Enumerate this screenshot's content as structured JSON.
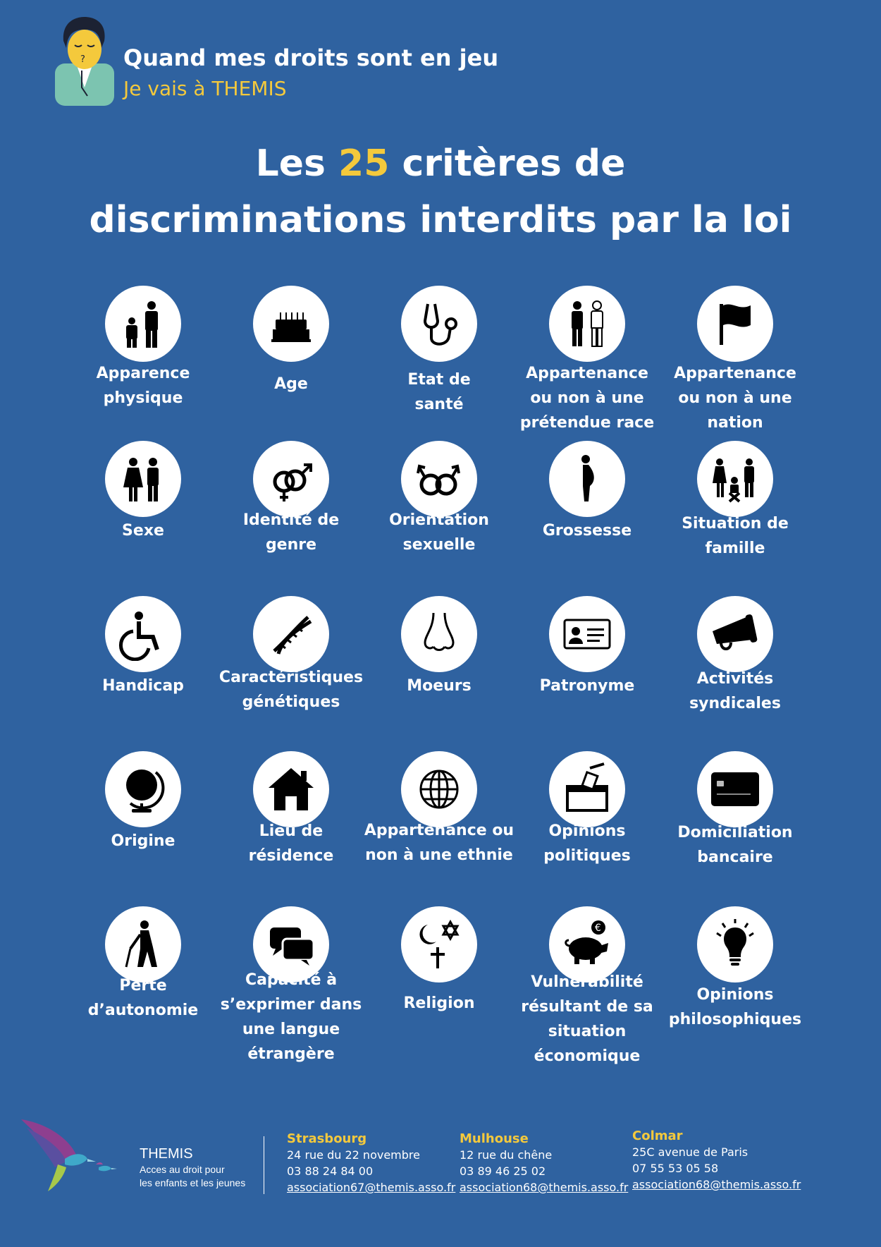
{
  "header": {
    "title": "Quand mes droits sont en jeu",
    "subtitle": "Je vais à THEMIS"
  },
  "main_title": {
    "prefix": "Les ",
    "number": "25",
    "suffix": " critères de",
    "line2": "discriminations interdits par la loi"
  },
  "colors": {
    "background": "#2f62a0",
    "accent": "#f4c93c",
    "circle": "#ffffff",
    "icon": "#000000"
  },
  "criteria": [
    {
      "label": "Apparence\nphysique",
      "icon": "people-sizes-icon"
    },
    {
      "label": "Age",
      "icon": "birthday-cake-icon"
    },
    {
      "label": "Etat de\nsanté",
      "icon": "stethoscope-icon"
    },
    {
      "label": "Appartenance\nou non à une\nprétendue race",
      "icon": "two-persons-icon"
    },
    {
      "label": "Appartenance\nou non à une\nnation",
      "icon": "flag-icon"
    },
    {
      "label": "Sexe",
      "icon": "woman-man-icon"
    },
    {
      "label": "Identité de\ngenre",
      "icon": "gender-symbols-icon"
    },
    {
      "label": "Orientation\nsexuelle",
      "icon": "male-couple-symbols-icon"
    },
    {
      "label": "Grossesse",
      "icon": "pregnant-woman-icon"
    },
    {
      "label": "Situation de\nfamille",
      "icon": "family-icon"
    },
    {
      "label": "Handicap",
      "icon": "wheelchair-icon"
    },
    {
      "label": "Caractéristiques\ngénétiques",
      "icon": "dna-icon"
    },
    {
      "label": "Moeurs",
      "icon": "nose-icon"
    },
    {
      "label": "Patronyme",
      "icon": "id-card-icon"
    },
    {
      "label": "Activités\nsyndicales",
      "icon": "megaphone-icon"
    },
    {
      "label": "Origine",
      "icon": "globe-icon"
    },
    {
      "label": "Lieu de\nrésidence",
      "icon": "house-icon"
    },
    {
      "label": "Appartenance ou\nnon à une ethnie",
      "icon": "world-grid-icon"
    },
    {
      "label": "Opinions\npolitiques",
      "icon": "ballot-box-icon"
    },
    {
      "label": "Domiciliation\nbancaire",
      "icon": "bank-card-icon"
    },
    {
      "label": "Perte\nd’autonomie",
      "icon": "elderly-person-icon"
    },
    {
      "label": "Capacité à\ns’exprimer dans\nune langue\nétrangère",
      "icon": "speech-bubbles-icon"
    },
    {
      "label": "Religion",
      "icon": "religious-symbols-icon"
    },
    {
      "label": "Vulnérabilité\nrésultant de sa\nsituation\néconomique",
      "icon": "piggy-bank-icon"
    },
    {
      "label": "Opinions\nphilosophiques",
      "icon": "lightbulb-icon"
    }
  ],
  "footer": {
    "brand": {
      "name": "THEMIS",
      "tagline_1": "Acces au droit pour",
      "tagline_2": "les enfants et les jeunes"
    },
    "offices": [
      {
        "city": "Strasbourg",
        "address": "24 rue du 22 novembre",
        "phone": "03 88 24 84 00",
        "email": "association67@themis.asso.fr"
      },
      {
        "city": "Mulhouse",
        "address": "12 rue du chêne",
        "phone": "03 89 46 25 02",
        "email": "association68@themis.asso.fr"
      },
      {
        "city": "Colmar",
        "address": "25C avenue de Paris",
        "phone": "07 55 53 05 58",
        "email": "association68@themis.asso.fr"
      }
    ]
  }
}
